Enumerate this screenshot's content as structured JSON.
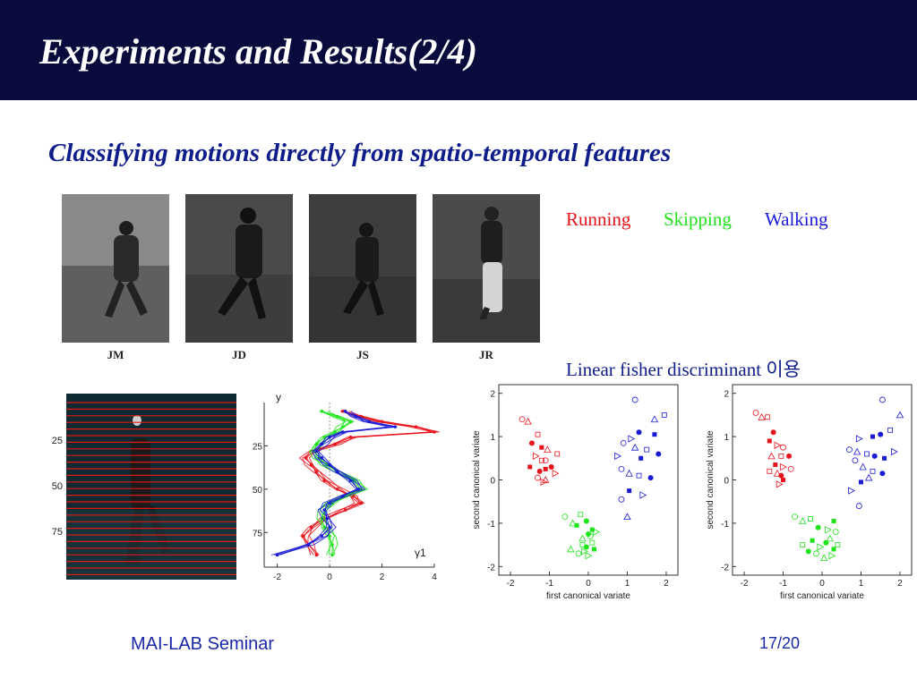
{
  "slide": {
    "title": "Experiments and Results(2/4)",
    "subtitle": "Classifying motions directly from spatio-temporal features",
    "footer_left": "MAI-LAB Seminar",
    "footer_right": "17/20"
  },
  "colors": {
    "title_bar": "#0a0b3d",
    "running": "#e8141b",
    "skipping": "#1ee41a",
    "walking": "#1a1ad6"
  },
  "photos": [
    {
      "label": "JM"
    },
    {
      "label": "JD"
    },
    {
      "label": "JS"
    },
    {
      "label": "JR"
    }
  ],
  "legend": {
    "running": "Running",
    "skipping": "Skipping",
    "walking": "Walking"
  },
  "lfd_caption": "Linear fisher discriminant 이용",
  "silhouette_image": {
    "y_ticks": [
      "25",
      "50",
      "75"
    ]
  },
  "chart_data": [
    {
      "type": "line",
      "ylabel": "y",
      "xlabel": "γ1",
      "x_ticks": [
        "-2",
        "0",
        "2",
        "4"
      ],
      "y_ticks": [
        "25",
        "50",
        "75"
      ],
      "xlim": [
        -2.5,
        4
      ],
      "ylim": [
        95,
        0
      ],
      "series": [
        {
          "name": "Running",
          "x": [
            0.5,
            1.2,
            2.0,
            3.3,
            4.0,
            0.8,
            0.2,
            -0.6,
            -0.9,
            -0.7,
            -0.5,
            -0.2,
            0.3,
            0.9,
            1.2,
            0.6,
            -0.2,
            -0.7,
            -1.0,
            -0.8,
            -0.5
          ]
        },
        {
          "name": "Skipping",
          "x": [
            -0.3,
            0.3,
            0.8,
            0.5,
            0.2,
            -0.2,
            -0.5,
            -0.6,
            -0.4,
            -0.1,
            0.3,
            0.9,
            1.2,
            0.6,
            0.1,
            -0.2,
            -0.3,
            -0.2,
            0.0,
            0.1,
            0.1
          ]
        },
        {
          "name": "Walking",
          "x": [
            0.6,
            1.0,
            1.5,
            2.5,
            0.5,
            0.0,
            -0.3,
            -0.5,
            -0.3,
            0.0,
            0.3,
            0.8,
            1.1,
            0.5,
            0.0,
            -0.2,
            -0.1,
            0.0,
            -0.3,
            -0.8,
            -2.0
          ]
        }
      ],
      "y": [
        5,
        8,
        11,
        14,
        17,
        20,
        24,
        28,
        32,
        36,
        40,
        45,
        50,
        54,
        58,
        62,
        67,
        72,
        77,
        82,
        88
      ]
    },
    {
      "type": "scatter",
      "xlabel": "first canonical variate",
      "ylabel": "second canonical variate",
      "xlim": [
        -2.3,
        2.3
      ],
      "ylim": [
        -2.2,
        2.2
      ],
      "x_ticks": [
        "-2",
        "-1",
        "0",
        "1",
        "2"
      ],
      "y_ticks": [
        "2",
        "1",
        "0",
        "-1",
        "-2"
      ],
      "series": [
        {
          "name": "Running",
          "points": [
            [
              -1.7,
              1.4
            ],
            [
              -1.55,
              1.35
            ],
            [
              -1.3,
              1.05
            ],
            [
              -1.45,
              0.85
            ],
            [
              -1.2,
              0.75
            ],
            [
              -1.35,
              0.55
            ],
            [
              -1.1,
              0.45
            ],
            [
              -1.05,
              0.7
            ],
            [
              -0.8,
              0.6
            ],
            [
              -1.25,
              0.2
            ],
            [
              -1.1,
              0.25
            ],
            [
              -0.85,
              0.15
            ],
            [
              -1.3,
              0.05
            ],
            [
              -1.1,
              0.0
            ],
            [
              -1.2,
              0.45
            ],
            [
              -0.95,
              0.3
            ],
            [
              -1.5,
              0.3
            ],
            [
              -1.15,
              -0.05
            ]
          ]
        },
        {
          "name": "Skipping",
          "points": [
            [
              -0.6,
              -0.85
            ],
            [
              -0.4,
              -1.0
            ],
            [
              -0.2,
              -0.8
            ],
            [
              -0.05,
              -0.95
            ],
            [
              0.1,
              -1.15
            ],
            [
              0.2,
              -1.2
            ],
            [
              0.05,
              -1.3
            ],
            [
              -0.15,
              -1.35
            ],
            [
              0.1,
              -1.45
            ],
            [
              -0.05,
              -1.55
            ],
            [
              0.15,
              -1.6
            ],
            [
              0.0,
              -1.75
            ],
            [
              -0.25,
              -1.7
            ],
            [
              -0.45,
              -1.6
            ],
            [
              -0.15,
              -1.5
            ],
            [
              0.0,
              -1.25
            ],
            [
              -0.3,
              -1.05
            ],
            [
              -0.1,
              -1.65
            ]
          ]
        },
        {
          "name": "Walking",
          "points": [
            [
              1.2,
              1.85
            ],
            [
              1.7,
              1.4
            ],
            [
              1.95,
              1.5
            ],
            [
              1.3,
              1.1
            ],
            [
              1.7,
              1.05
            ],
            [
              1.1,
              0.95
            ],
            [
              0.9,
              0.85
            ],
            [
              1.2,
              0.75
            ],
            [
              1.5,
              0.7
            ],
            [
              1.8,
              0.6
            ],
            [
              1.35,
              0.5
            ],
            [
              0.75,
              0.55
            ],
            [
              0.85,
              0.25
            ],
            [
              1.05,
              0.15
            ],
            [
              1.3,
              0.1
            ],
            [
              1.6,
              0.05
            ],
            [
              1.05,
              -0.25
            ],
            [
              1.4,
              -0.35
            ],
            [
              0.85,
              -0.45
            ],
            [
              1.0,
              -0.85
            ]
          ]
        }
      ]
    },
    {
      "type": "scatter",
      "xlabel": "first canonical variate",
      "ylabel": "second canonical variate",
      "xlim": [
        -2.3,
        2.3
      ],
      "ylim": [
        -2.2,
        2.2
      ],
      "x_ticks": [
        "-2",
        "-1",
        "0",
        "1",
        "2"
      ],
      "y_ticks": [
        "2",
        "1",
        "0",
        "-1",
        "-2"
      ],
      "series": [
        {
          "name": "Running",
          "points": [
            [
              -1.7,
              1.55
            ],
            [
              -1.55,
              1.45
            ],
            [
              -1.4,
              1.45
            ],
            [
              -1.25,
              1.1
            ],
            [
              -1.35,
              0.9
            ],
            [
              -1.15,
              0.8
            ],
            [
              -1.0,
              0.75
            ],
            [
              -1.3,
              0.55
            ],
            [
              -1.05,
              0.55
            ],
            [
              -0.85,
              0.55
            ],
            [
              -1.2,
              0.35
            ],
            [
              -1.0,
              0.3
            ],
            [
              -0.8,
              0.25
            ],
            [
              -1.15,
              0.15
            ],
            [
              -1.35,
              0.2
            ],
            [
              -1.05,
              0.1
            ],
            [
              -1.0,
              0.0
            ],
            [
              -1.1,
              -0.1
            ]
          ]
        },
        {
          "name": "Skipping",
          "points": [
            [
              -0.7,
              -0.85
            ],
            [
              -0.5,
              -0.95
            ],
            [
              -0.3,
              -0.9
            ],
            [
              -0.1,
              -1.1
            ],
            [
              0.3,
              -0.95
            ],
            [
              0.15,
              -1.15
            ],
            [
              0.35,
              -1.2
            ],
            [
              0.2,
              -1.35
            ],
            [
              0.4,
              -1.5
            ],
            [
              0.1,
              -1.45
            ],
            [
              0.3,
              -1.6
            ],
            [
              -0.05,
              -1.55
            ],
            [
              -0.15,
              -1.7
            ],
            [
              0.05,
              -1.8
            ],
            [
              -0.5,
              -1.5
            ],
            [
              -0.35,
              -1.65
            ],
            [
              -0.25,
              -1.4
            ],
            [
              0.25,
              -1.75
            ]
          ]
        },
        {
          "name": "Walking",
          "points": [
            [
              1.55,
              1.85
            ],
            [
              2.0,
              1.5
            ],
            [
              1.75,
              1.15
            ],
            [
              1.5,
              1.05
            ],
            [
              1.3,
              1.0
            ],
            [
              0.95,
              0.95
            ],
            [
              0.7,
              0.7
            ],
            [
              0.9,
              0.65
            ],
            [
              1.15,
              0.6
            ],
            [
              1.35,
              0.55
            ],
            [
              1.6,
              0.5
            ],
            [
              1.85,
              0.65
            ],
            [
              0.85,
              0.45
            ],
            [
              1.05,
              0.3
            ],
            [
              1.3,
              0.2
            ],
            [
              1.55,
              0.15
            ],
            [
              1.0,
              -0.05
            ],
            [
              0.75,
              -0.25
            ],
            [
              0.95,
              -0.6
            ],
            [
              1.2,
              0.05
            ]
          ]
        }
      ]
    }
  ]
}
